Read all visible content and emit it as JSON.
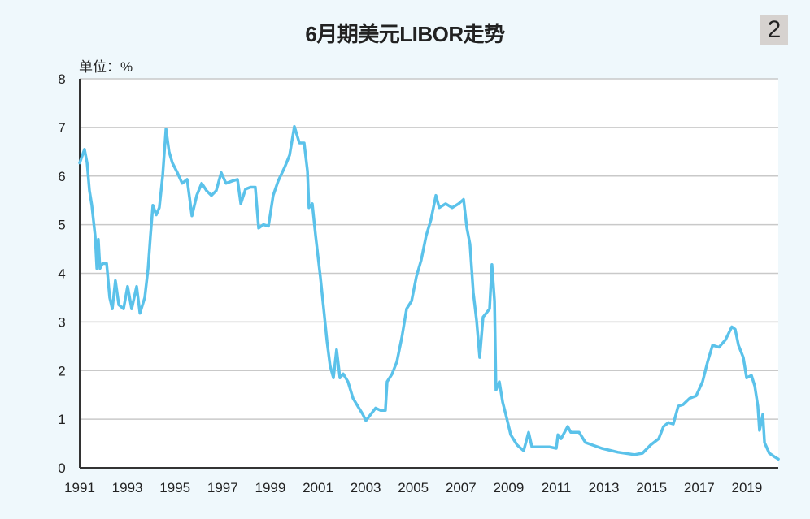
{
  "chart_data": {
    "type": "line",
    "title": "6月期美元LIBOR走势",
    "badge": "2",
    "unit_label": "单位：%",
    "xlabel": "",
    "ylabel": "",
    "xlim": [
      1991,
      2020.32
    ],
    "ylim": [
      0,
      8
    ],
    "x_ticks": [
      "1991",
      "1993",
      "1995",
      "1997",
      "1999",
      "2001",
      "2003",
      "2005",
      "2007",
      "2009",
      "2011",
      "2013",
      "2015",
      "2017",
      "2019"
    ],
    "y_ticks": [
      "0",
      "1",
      "2",
      "3",
      "4",
      "5",
      "6",
      "7",
      "8"
    ],
    "grid": "horizontal",
    "line_color": "#5bc2ea",
    "series": [
      {
        "points": [
          [
            1991.0,
            6.27
          ],
          [
            1991.2,
            6.55
          ],
          [
            1991.31,
            6.27
          ],
          [
            1991.41,
            5.7
          ],
          [
            1991.51,
            5.4
          ],
          [
            1991.65,
            4.77
          ],
          [
            1991.72,
            4.1
          ],
          [
            1991.78,
            4.7
          ],
          [
            1991.85,
            4.1
          ],
          [
            1991.96,
            4.2
          ],
          [
            1992.13,
            4.2
          ],
          [
            1992.26,
            3.5
          ],
          [
            1992.37,
            3.27
          ],
          [
            1992.5,
            3.85
          ],
          [
            1992.64,
            3.35
          ],
          [
            1992.84,
            3.27
          ],
          [
            1993.01,
            3.73
          ],
          [
            1993.18,
            3.27
          ],
          [
            1993.39,
            3.73
          ],
          [
            1993.53,
            3.18
          ],
          [
            1993.73,
            3.5
          ],
          [
            1993.87,
            4.1
          ],
          [
            1993.97,
            4.77
          ],
          [
            1994.07,
            5.4
          ],
          [
            1994.21,
            5.2
          ],
          [
            1994.34,
            5.35
          ],
          [
            1994.48,
            6.0
          ],
          [
            1994.62,
            6.97
          ],
          [
            1994.75,
            6.5
          ],
          [
            1994.89,
            6.27
          ],
          [
            1995.1,
            6.07
          ],
          [
            1995.3,
            5.85
          ],
          [
            1995.51,
            5.93
          ],
          [
            1995.71,
            5.18
          ],
          [
            1995.91,
            5.6
          ],
          [
            1996.12,
            5.85
          ],
          [
            1996.32,
            5.7
          ],
          [
            1996.53,
            5.6
          ],
          [
            1996.73,
            5.7
          ],
          [
            1996.94,
            6.07
          ],
          [
            1997.14,
            5.85
          ],
          [
            1997.42,
            5.9
          ],
          [
            1997.62,
            5.93
          ],
          [
            1997.76,
            5.43
          ],
          [
            1997.96,
            5.73
          ],
          [
            1998.17,
            5.77
          ],
          [
            1998.37,
            5.77
          ],
          [
            1998.51,
            4.93
          ],
          [
            1998.71,
            5.0
          ],
          [
            1998.92,
            4.97
          ],
          [
            1999.12,
            5.6
          ],
          [
            1999.33,
            5.9
          ],
          [
            1999.6,
            6.18
          ],
          [
            1999.81,
            6.43
          ],
          [
            2000.01,
            7.02
          ],
          [
            2000.22,
            6.68
          ],
          [
            2000.42,
            6.68
          ],
          [
            2000.56,
            6.1
          ],
          [
            2000.62,
            5.35
          ],
          [
            2000.76,
            5.43
          ],
          [
            2000.9,
            4.77
          ],
          [
            2001.1,
            3.93
          ],
          [
            2001.24,
            3.27
          ],
          [
            2001.38,
            2.6
          ],
          [
            2001.51,
            2.1
          ],
          [
            2001.65,
            1.85
          ],
          [
            2001.78,
            2.43
          ],
          [
            2001.92,
            1.85
          ],
          [
            2002.06,
            1.93
          ],
          [
            2002.26,
            1.77
          ],
          [
            2002.47,
            1.43
          ],
          [
            2002.67,
            1.27
          ],
          [
            2002.88,
            1.1
          ],
          [
            2003.01,
            0.97
          ],
          [
            2003.22,
            1.1
          ],
          [
            2003.42,
            1.23
          ],
          [
            2003.63,
            1.18
          ],
          [
            2003.83,
            1.18
          ],
          [
            2003.9,
            1.77
          ],
          [
            2004.11,
            1.93
          ],
          [
            2004.31,
            2.18
          ],
          [
            2004.52,
            2.68
          ],
          [
            2004.72,
            3.27
          ],
          [
            2004.93,
            3.43
          ],
          [
            2005.13,
            3.93
          ],
          [
            2005.33,
            4.27
          ],
          [
            2005.54,
            4.77
          ],
          [
            2005.74,
            5.1
          ],
          [
            2005.95,
            5.6
          ],
          [
            2006.09,
            5.35
          ],
          [
            2006.36,
            5.43
          ],
          [
            2006.63,
            5.35
          ],
          [
            2006.9,
            5.43
          ],
          [
            2007.11,
            5.52
          ],
          [
            2007.25,
            4.93
          ],
          [
            2007.38,
            4.6
          ],
          [
            2007.52,
            3.6
          ],
          [
            2007.66,
            3.02
          ],
          [
            2007.79,
            2.27
          ],
          [
            2007.93,
            3.1
          ],
          [
            2008.06,
            3.18
          ],
          [
            2008.2,
            3.27
          ],
          [
            2008.3,
            4.18
          ],
          [
            2008.41,
            3.43
          ],
          [
            2008.47,
            1.6
          ],
          [
            2008.61,
            1.77
          ],
          [
            2008.75,
            1.35
          ],
          [
            2008.88,
            1.1
          ],
          [
            2009.09,
            0.68
          ],
          [
            2009.36,
            0.47
          ],
          [
            2009.63,
            0.35
          ],
          [
            2009.84,
            0.73
          ],
          [
            2009.98,
            0.43
          ],
          [
            2010.32,
            0.43
          ],
          [
            2010.73,
            0.43
          ],
          [
            2011.0,
            0.4
          ],
          [
            2011.07,
            0.68
          ],
          [
            2011.2,
            0.6
          ],
          [
            2011.48,
            0.85
          ],
          [
            2011.61,
            0.73
          ],
          [
            2011.96,
            0.73
          ],
          [
            2012.23,
            0.52
          ],
          [
            2012.91,
            0.4
          ],
          [
            2013.59,
            0.32
          ],
          [
            2014.28,
            0.27
          ],
          [
            2014.62,
            0.3
          ],
          [
            2014.96,
            0.47
          ],
          [
            2015.3,
            0.6
          ],
          [
            2015.5,
            0.85
          ],
          [
            2015.71,
            0.93
          ],
          [
            2015.91,
            0.9
          ],
          [
            2016.12,
            1.27
          ],
          [
            2016.32,
            1.3
          ],
          [
            2016.6,
            1.43
          ],
          [
            2016.87,
            1.48
          ],
          [
            2017.14,
            1.77
          ],
          [
            2017.35,
            2.18
          ],
          [
            2017.56,
            2.52
          ],
          [
            2017.83,
            2.48
          ],
          [
            2018.1,
            2.63
          ],
          [
            2018.37,
            2.9
          ],
          [
            2018.51,
            2.85
          ],
          [
            2018.65,
            2.52
          ],
          [
            2018.85,
            2.27
          ],
          [
            2018.99,
            1.85
          ],
          [
            2019.19,
            1.9
          ],
          [
            2019.33,
            1.68
          ],
          [
            2019.46,
            1.27
          ],
          [
            2019.53,
            0.77
          ],
          [
            2019.67,
            1.1
          ],
          [
            2019.74,
            0.52
          ],
          [
            2019.94,
            0.3
          ],
          [
            2020.15,
            0.23
          ],
          [
            2020.32,
            0.18
          ]
        ]
      }
    ]
  }
}
